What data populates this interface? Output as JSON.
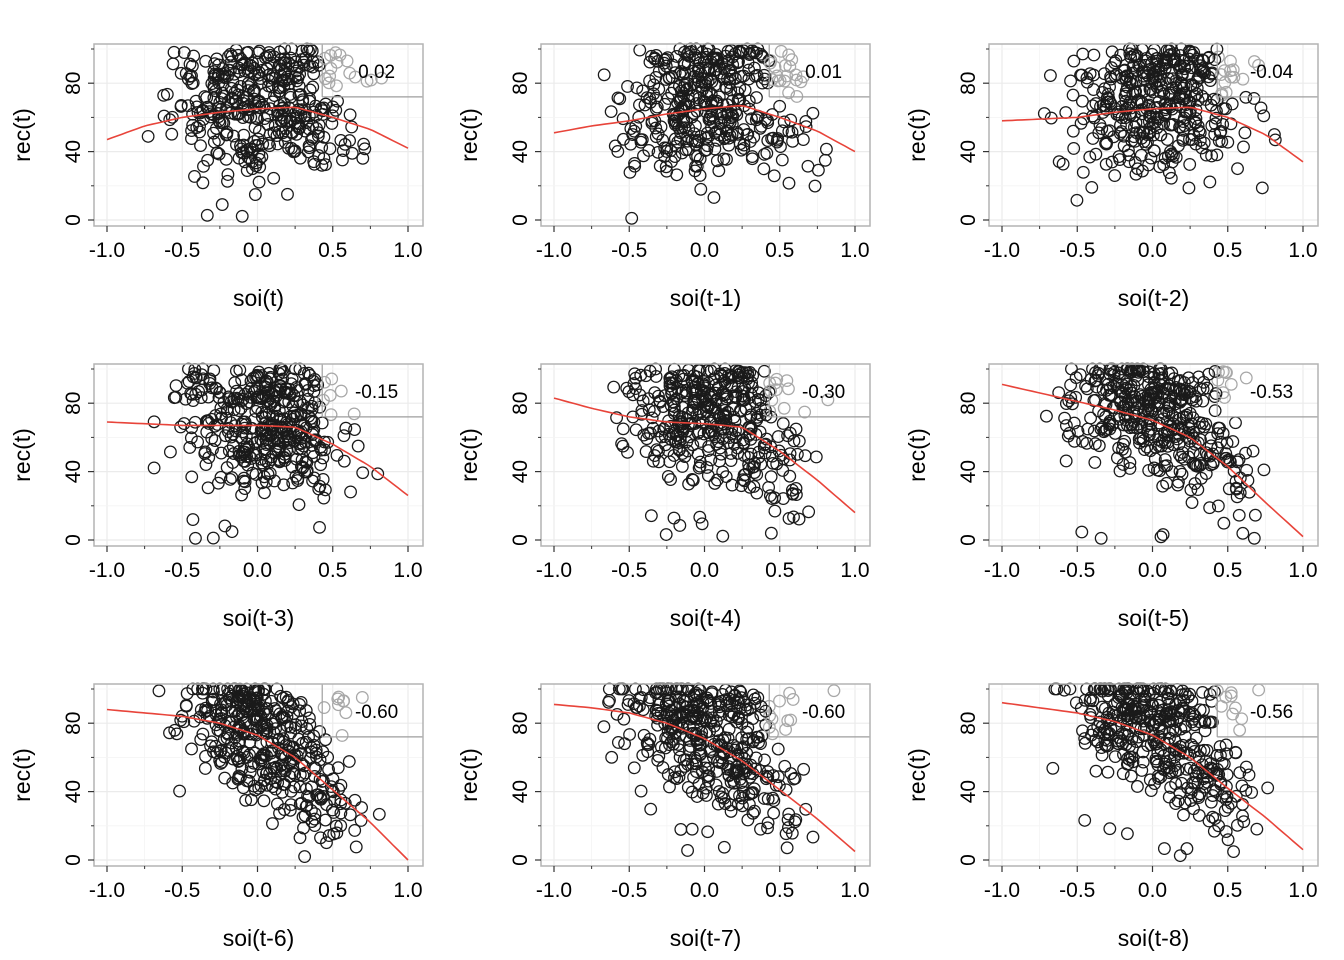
{
  "chart_data": [
    {
      "type": "scatter",
      "xlabel": "soi(t)",
      "ylabel": "rec(t)",
      "correlation": "0.02",
      "xlim": [
        -1.0,
        1.0
      ],
      "ylim": [
        0,
        100
      ],
      "xticks": [
        "-1.0",
        "-0.5",
        "0.0",
        "0.5",
        "1.0"
      ],
      "yticks": [
        "0",
        "40",
        "80"
      ],
      "seed": 11,
      "smooth": {
        "x": [
          -1.0,
          -0.75,
          -0.5,
          -0.25,
          0.0,
          0.25,
          0.5,
          0.75,
          1.0
        ],
        "y": [
          47,
          55,
          60,
          63,
          65,
          66,
          60,
          53,
          42
        ]
      }
    },
    {
      "type": "scatter",
      "xlabel": "soi(t-1)",
      "ylabel": "rec(t)",
      "correlation": "0.01",
      "xlim": [
        -1.0,
        1.0
      ],
      "ylim": [
        0,
        100
      ],
      "xticks": [
        "-1.0",
        "-0.5",
        "0.0",
        "0.5",
        "1.0"
      ],
      "yticks": [
        "0",
        "40",
        "80"
      ],
      "seed": 23,
      "smooth": {
        "x": [
          -1.0,
          -0.75,
          -0.5,
          -0.25,
          0.0,
          0.25,
          0.5,
          0.75,
          1.0
        ],
        "y": [
          51,
          55,
          58,
          62,
          65,
          67,
          60,
          52,
          40
        ]
      }
    },
    {
      "type": "scatter",
      "xlabel": "soi(t-2)",
      "ylabel": "rec(t)",
      "correlation": "-0.04",
      "xlim": [
        -1.0,
        1.0
      ],
      "ylim": [
        0,
        100
      ],
      "xticks": [
        "-1.0",
        "-0.5",
        "0.0",
        "0.5",
        "1.0"
      ],
      "yticks": [
        "0",
        "40",
        "80"
      ],
      "seed": 37,
      "smooth": {
        "x": [
          -1.0,
          -0.75,
          -0.5,
          -0.25,
          0.0,
          0.25,
          0.5,
          0.75,
          1.0
        ],
        "y": [
          58,
          59,
          60,
          63,
          65,
          66,
          60,
          50,
          34
        ]
      }
    },
    {
      "type": "scatter",
      "xlabel": "soi(t-3)",
      "ylabel": "rec(t)",
      "correlation": "-0.15",
      "xlim": [
        -1.0,
        1.0
      ],
      "ylim": [
        0,
        100
      ],
      "xticks": [
        "-1.0",
        "-0.5",
        "0.0",
        "0.5",
        "1.0"
      ],
      "yticks": [
        "0",
        "40",
        "80"
      ],
      "seed": 41,
      "smooth": {
        "x": [
          -1.0,
          -0.75,
          -0.5,
          -0.25,
          0.0,
          0.25,
          0.5,
          0.75,
          1.0
        ],
        "y": [
          69,
          68,
          67,
          67,
          67,
          66,
          56,
          43,
          26
        ]
      }
    },
    {
      "type": "scatter",
      "xlabel": "soi(t-4)",
      "ylabel": "rec(t)",
      "correlation": "-0.30",
      "xlim": [
        -1.0,
        1.0
      ],
      "ylim": [
        0,
        100
      ],
      "xticks": [
        "-1.0",
        "-0.5",
        "0.0",
        "0.5",
        "1.0"
      ],
      "yticks": [
        "0",
        "40",
        "80"
      ],
      "seed": 53,
      "smooth": {
        "x": [
          -1.0,
          -0.75,
          -0.5,
          -0.25,
          0.0,
          0.25,
          0.5,
          0.75,
          1.0
        ],
        "y": [
          83,
          77,
          72,
          69,
          68,
          66,
          52,
          35,
          16
        ]
      }
    },
    {
      "type": "scatter",
      "xlabel": "soi(t-5)",
      "ylabel": "rec(t)",
      "correlation": "-0.53",
      "xlim": [
        -1.0,
        1.0
      ],
      "ylim": [
        0,
        100
      ],
      "xticks": [
        "-1.0",
        "-0.5",
        "0.0",
        "0.5",
        "1.0"
      ],
      "yticks": [
        "0",
        "40",
        "80"
      ],
      "seed": 67,
      "smooth": {
        "x": [
          -1.0,
          -0.75,
          -0.5,
          -0.25,
          0.0,
          0.25,
          0.5,
          0.75,
          1.0
        ],
        "y": [
          91,
          86,
          81,
          76,
          70,
          60,
          43,
          22,
          2
        ]
      }
    },
    {
      "type": "scatter",
      "xlabel": "soi(t-6)",
      "ylabel": "rec(t)",
      "correlation": "-0.60",
      "xlim": [
        -1.0,
        1.0
      ],
      "ylim": [
        0,
        100
      ],
      "xticks": [
        "-1.0",
        "-0.5",
        "0.0",
        "0.5",
        "1.0"
      ],
      "yticks": [
        "0",
        "40",
        "80"
      ],
      "seed": 79,
      "smooth": {
        "x": [
          -1.0,
          -0.75,
          -0.5,
          -0.25,
          0.0,
          0.25,
          0.5,
          0.75,
          1.0
        ],
        "y": [
          88,
          86,
          84,
          80,
          73,
          60,
          41,
          22,
          0
        ]
      }
    },
    {
      "type": "scatter",
      "xlabel": "soi(t-7)",
      "ylabel": "rec(t)",
      "correlation": "-0.60",
      "xlim": [
        -1.0,
        1.0
      ],
      "ylim": [
        0,
        100
      ],
      "xticks": [
        "-1.0",
        "-0.5",
        "0.0",
        "0.5",
        "1.0"
      ],
      "yticks": [
        "0",
        "40",
        "80"
      ],
      "seed": 97,
      "smooth": {
        "x": [
          -1.0,
          -0.75,
          -0.5,
          -0.25,
          0.0,
          0.25,
          0.5,
          0.75,
          1.0
        ],
        "y": [
          91,
          89,
          86,
          80,
          71,
          58,
          41,
          24,
          5
        ]
      }
    },
    {
      "type": "scatter",
      "xlabel": "soi(t-8)",
      "ylabel": "rec(t)",
      "correlation": "-0.56",
      "xlim": [
        -1.0,
        1.0
      ],
      "ylim": [
        0,
        100
      ],
      "xticks": [
        "-1.0",
        "-0.5",
        "0.0",
        "0.5",
        "1.0"
      ],
      "yticks": [
        "0",
        "40",
        "80"
      ],
      "seed": 113,
      "smooth": {
        "x": [
          -1.0,
          -0.75,
          -0.5,
          -0.25,
          0.0,
          0.25,
          0.5,
          0.75,
          1.0
        ],
        "y": [
          92,
          89,
          86,
          81,
          73,
          60,
          42,
          25,
          6
        ]
      }
    }
  ],
  "colors": {
    "points": "#1a1a1a",
    "points_muted": "#a8a8a8",
    "smooth": "#e8443a",
    "panel_border": "#b3b3b3",
    "grid": "#ebebeb",
    "inset": "#9e9e9e"
  }
}
